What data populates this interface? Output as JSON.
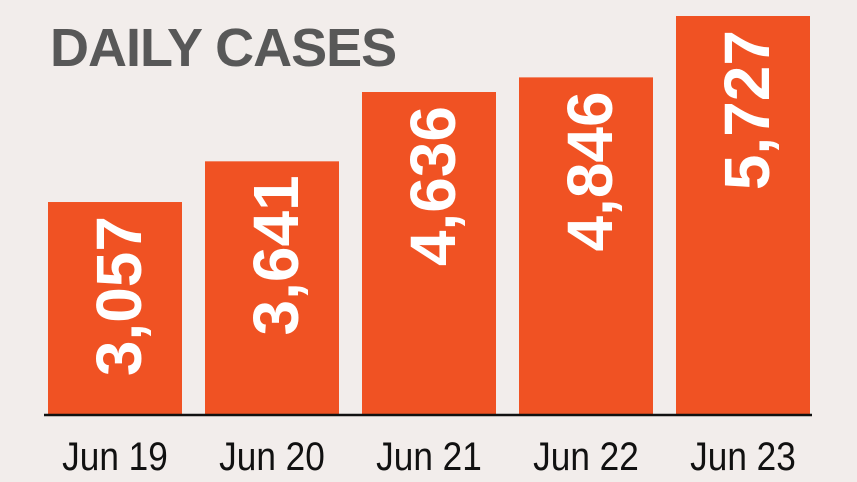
{
  "chart_data": {
    "type": "bar",
    "title": "DAILY CASES",
    "categories": [
      "Jun 19",
      "Jun 20",
      "Jun 21",
      "Jun 22",
      "Jun 23"
    ],
    "values": [
      3057,
      3641,
      4636,
      4846,
      5727
    ],
    "value_labels": [
      "3,057",
      "3,641",
      "4,636",
      "4,846",
      "5,727"
    ],
    "xlabel": "",
    "ylabel": "",
    "ylim": [
      0,
      5727
    ],
    "grid": false,
    "colors": {
      "bar": "#f05223",
      "background": "#f2edeb",
      "title": "#585858"
    }
  }
}
